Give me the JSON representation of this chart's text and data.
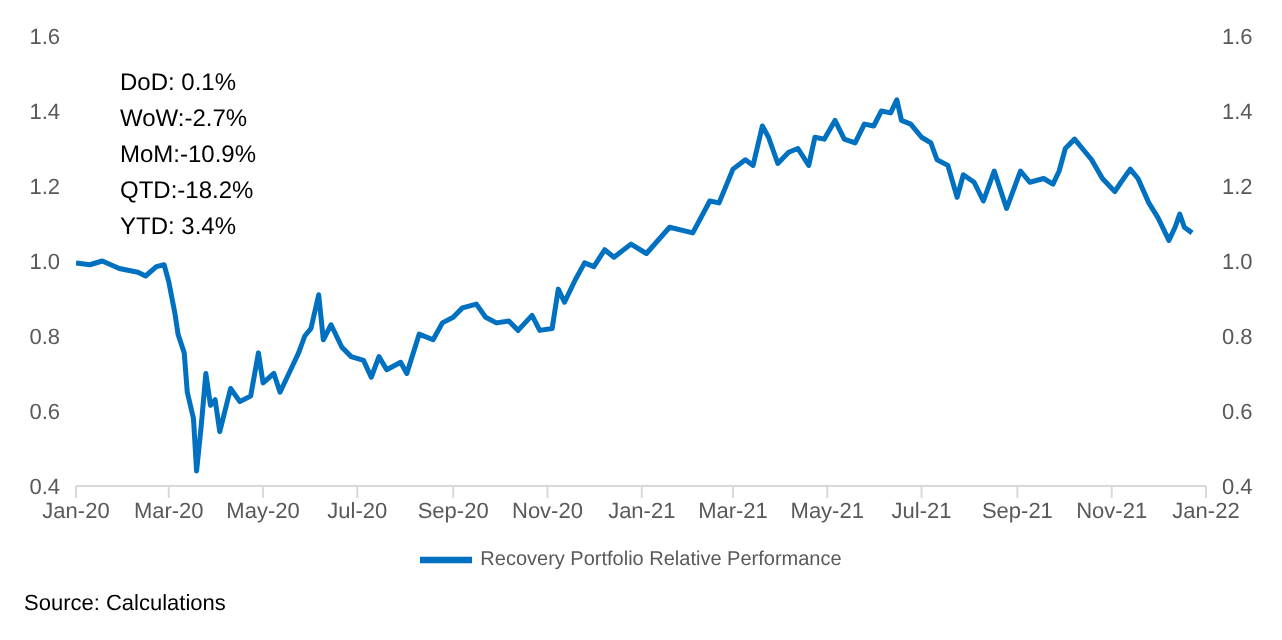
{
  "chart_data": {
    "type": "line",
    "x": [
      "2020-01-01",
      "2020-01-10",
      "2020-01-18",
      "2020-01-29",
      "2020-02-10",
      "2020-02-15",
      "2020-02-22",
      "2020-02-27",
      "2020-03-01",
      "2020-03-05",
      "2020-03-07",
      "2020-03-11",
      "2020-03-13",
      "2020-03-17",
      "2020-03-19",
      "2020-03-22",
      "2020-03-25",
      "2020-03-28",
      "2020-03-31",
      "2020-04-03",
      "2020-04-10",
      "2020-04-16",
      "2020-04-23",
      "2020-04-28",
      "2020-05-01",
      "2020-05-08",
      "2020-05-12",
      "2020-05-20",
      "2020-05-24",
      "2020-05-28",
      "2020-06-01",
      "2020-06-06",
      "2020-06-09",
      "2020-06-14",
      "2020-06-21",
      "2020-06-27",
      "2020-07-05",
      "2020-07-10",
      "2020-07-15",
      "2020-07-20",
      "2020-07-29",
      "2020-08-02",
      "2020-08-10",
      "2020-08-19",
      "2020-08-25",
      "2020-09-01",
      "2020-09-07",
      "2020-09-16",
      "2020-09-22",
      "2020-09-29",
      "2020-10-07",
      "2020-10-13",
      "2020-10-22",
      "2020-10-27",
      "2020-11-04",
      "2020-11-08",
      "2020-11-12",
      "2020-11-19",
      "2020-11-25",
      "2020-12-01",
      "2020-12-08",
      "2020-12-14",
      "2020-12-25",
      "2021-01-04",
      "2021-01-19",
      "2021-02-03",
      "2021-02-14",
      "2021-02-20",
      "2021-03-01",
      "2021-03-09",
      "2021-03-14",
      "2021-03-20",
      "2021-03-24",
      "2021-03-30",
      "2021-04-06",
      "2021-04-12",
      "2021-04-19",
      "2021-04-23",
      "2021-04-29",
      "2021-05-06",
      "2021-05-12",
      "2021-05-19",
      "2021-05-25",
      "2021-05-31",
      "2021-06-05",
      "2021-06-11",
      "2021-06-15",
      "2021-06-18",
      "2021-06-24",
      "2021-07-01",
      "2021-07-07",
      "2021-07-11",
      "2021-07-18",
      "2021-07-24",
      "2021-07-28",
      "2021-08-04",
      "2021-08-10",
      "2021-08-17",
      "2021-08-25",
      "2021-09-03",
      "2021-09-09",
      "2021-09-18",
      "2021-09-24",
      "2021-09-28",
      "2021-10-02",
      "2021-10-08",
      "2021-10-15",
      "2021-10-19",
      "2021-10-26",
      "2021-11-03",
      "2021-11-07",
      "2021-11-13",
      "2021-11-18",
      "2021-11-25",
      "2021-12-01",
      "2021-12-08",
      "2021-12-12",
      "2021-12-15",
      "2021-12-18",
      "2021-12-23"
    ],
    "series": [
      {
        "name": "Recovery Portfolio Relative Performance",
        "color": "#0070c0",
        "values": [
          0.995,
          0.99,
          1.0,
          0.98,
          0.97,
          0.96,
          0.985,
          0.99,
          0.945,
          0.86,
          0.805,
          0.755,
          0.65,
          0.58,
          0.44,
          0.56,
          0.7,
          0.615,
          0.63,
          0.545,
          0.66,
          0.625,
          0.64,
          0.755,
          0.675,
          0.7,
          0.65,
          0.72,
          0.755,
          0.8,
          0.82,
          0.91,
          0.79,
          0.83,
          0.77,
          0.745,
          0.735,
          0.69,
          0.745,
          0.71,
          0.73,
          0.7,
          0.805,
          0.79,
          0.835,
          0.85,
          0.875,
          0.885,
          0.85,
          0.835,
          0.84,
          0.815,
          0.855,
          0.815,
          0.82,
          0.925,
          0.89,
          0.95,
          0.995,
          0.985,
          1.03,
          1.01,
          1.045,
          1.02,
          1.09,
          1.075,
          1.16,
          1.155,
          1.245,
          1.27,
          1.255,
          1.36,
          1.33,
          1.26,
          1.29,
          1.3,
          1.255,
          1.33,
          1.325,
          1.375,
          1.325,
          1.315,
          1.365,
          1.36,
          1.4,
          1.395,
          1.43,
          1.375,
          1.365,
          1.33,
          1.315,
          1.27,
          1.255,
          1.17,
          1.23,
          1.21,
          1.16,
          1.24,
          1.14,
          1.24,
          1.21,
          1.22,
          1.205,
          1.24,
          1.3,
          1.325,
          1.29,
          1.27,
          1.22,
          1.185,
          1.21,
          1.245,
          1.22,
          1.155,
          1.115,
          1.055,
          1.09,
          1.125,
          1.09,
          1.075
        ]
      }
    ],
    "xlim": [
      "2020-01-01",
      "2022-01-01"
    ],
    "xticks": [
      {
        "value": "2020-01-01",
        "label": "Jan-20"
      },
      {
        "value": "2020-03-01",
        "label": "Mar-20"
      },
      {
        "value": "2020-05-01",
        "label": "May-20"
      },
      {
        "value": "2020-07-01",
        "label": "Jul-20"
      },
      {
        "value": "2020-09-01",
        "label": "Sep-20"
      },
      {
        "value": "2020-11-01",
        "label": "Nov-20"
      },
      {
        "value": "2021-01-01",
        "label": "Jan-21"
      },
      {
        "value": "2021-03-01",
        "label": "Mar-21"
      },
      {
        "value": "2021-05-01",
        "label": "May-21"
      },
      {
        "value": "2021-07-01",
        "label": "Jul-21"
      },
      {
        "value": "2021-09-01",
        "label": "Sep-21"
      },
      {
        "value": "2021-11-01",
        "label": "Nov-21"
      },
      {
        "value": "2022-01-01",
        "label": "Jan-22"
      }
    ],
    "ylim": [
      0.4,
      1.6
    ],
    "yticks": [
      {
        "value": 0.4,
        "label": "0.4"
      },
      {
        "value": 0.6,
        "label": "0.6"
      },
      {
        "value": 0.8,
        "label": "0.8"
      },
      {
        "value": 1.0,
        "label": "1.0"
      },
      {
        "value": 1.2,
        "label": "1.2"
      },
      {
        "value": 1.4,
        "label": "1.4"
      },
      {
        "value": 1.6,
        "label": "1.6"
      }
    ],
    "y2lim": [
      0.4,
      1.6
    ],
    "y2ticks": [
      {
        "value": 0.4,
        "label": "0.4"
      },
      {
        "value": 0.6,
        "label": "0.6"
      },
      {
        "value": 0.8,
        "label": "0.8"
      },
      {
        "value": 1.0,
        "label": "1.0"
      },
      {
        "value": 1.2,
        "label": "1.2"
      },
      {
        "value": 1.4,
        "label": "1.4"
      },
      {
        "value": 1.6,
        "label": "1.6"
      }
    ],
    "grid": false,
    "legend": "bottom",
    "annotations": [
      "DoD: 0.1%",
      "WoW:-2.7%",
      "MoM:-10.9%",
      "QTD:-18.2%",
      "YTD: 3.4%",
      "Source: Calculations"
    ]
  }
}
